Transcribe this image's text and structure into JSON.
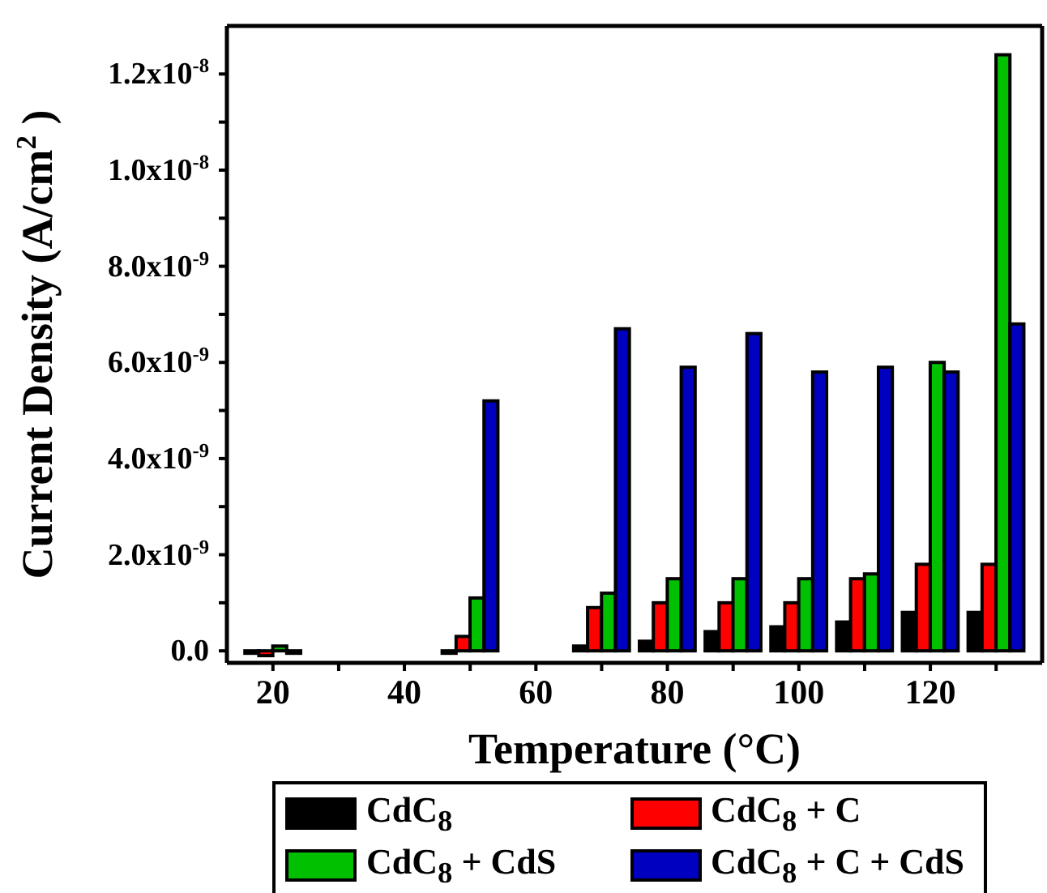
{
  "chart_data": {
    "type": "bar",
    "xlabel": "Temperature (°C)",
    "ylabel": "Current Density (A/cm$^{2}$)",
    "x": [
      20,
      50,
      70,
      80,
      90,
      100,
      110,
      120,
      130
    ],
    "series": [
      {
        "name": "CdC$_{8}$",
        "color": "#000000",
        "values": [
          0,
          0,
          1e-10,
          2e-10,
          4e-10,
          5e-10,
          6e-10,
          8e-10,
          8e-10
        ]
      },
      {
        "name": "CdC$_{8}$ + C",
        "color": "#ff0000",
        "values": [
          -1e-10,
          3e-10,
          9e-10,
          1e-09,
          1e-09,
          1e-09,
          1.5e-09,
          1.8e-09,
          1.8e-09
        ]
      },
      {
        "name": "CdC$_{8}$ + CdS",
        "color": "#00c000",
        "values": [
          1e-10,
          1.1e-09,
          1.2e-09,
          1.5e-09,
          1.5e-09,
          1.5e-09,
          1.6e-09,
          6e-09,
          1.24e-08
        ]
      },
      {
        "name": "CdC$_{8}$ + C + CdS",
        "color": "#0000c0",
        "values": [
          0,
          5.2e-09,
          6.7e-09,
          5.9e-09,
          6.6e-09,
          5.8e-09,
          5.9e-09,
          5.8e-09,
          6.8e-09
        ]
      }
    ],
    "xlim": [
      13,
      137
    ],
    "xticks": [
      20,
      {
        "value": 30,
        "label": null
      },
      40,
      {
        "value": 50,
        "label": null
      },
      60,
      {
        "value": 70,
        "label": null
      },
      80,
      {
        "value": 90,
        "label": null
      },
      100,
      {
        "value": 110,
        "label": null
      },
      120,
      {
        "value": 130,
        "label": null
      }
    ],
    "ylim": [
      -2.5e-10,
      1.3e-08
    ],
    "yticks": [
      {
        "value": 0,
        "label": "0.0"
      },
      {
        "value": 1e-09,
        "label": null
      },
      {
        "value": 2e-09,
        "label": "2.0x10$^{-9}$"
      },
      {
        "value": 3e-09,
        "label": null
      },
      {
        "value": 4e-09,
        "label": "4.0x10$^{-9}$"
      },
      {
        "value": 5e-09,
        "label": null
      },
      {
        "value": 6e-09,
        "label": "6.0x10$^{-9}$"
      },
      {
        "value": 7e-09,
        "label": null
      },
      {
        "value": 8e-09,
        "label": "8.0x10$^{-9}$"
      },
      {
        "value": 9e-09,
        "label": null
      },
      {
        "value": 1e-08,
        "label": "1.0x10$^{-8}$"
      },
      {
        "value": 1.1e-08,
        "label": null
      },
      {
        "value": 1.2e-08,
        "label": "1.2x10$^{-8}$"
      }
    ],
    "legend": "bottom"
  }
}
